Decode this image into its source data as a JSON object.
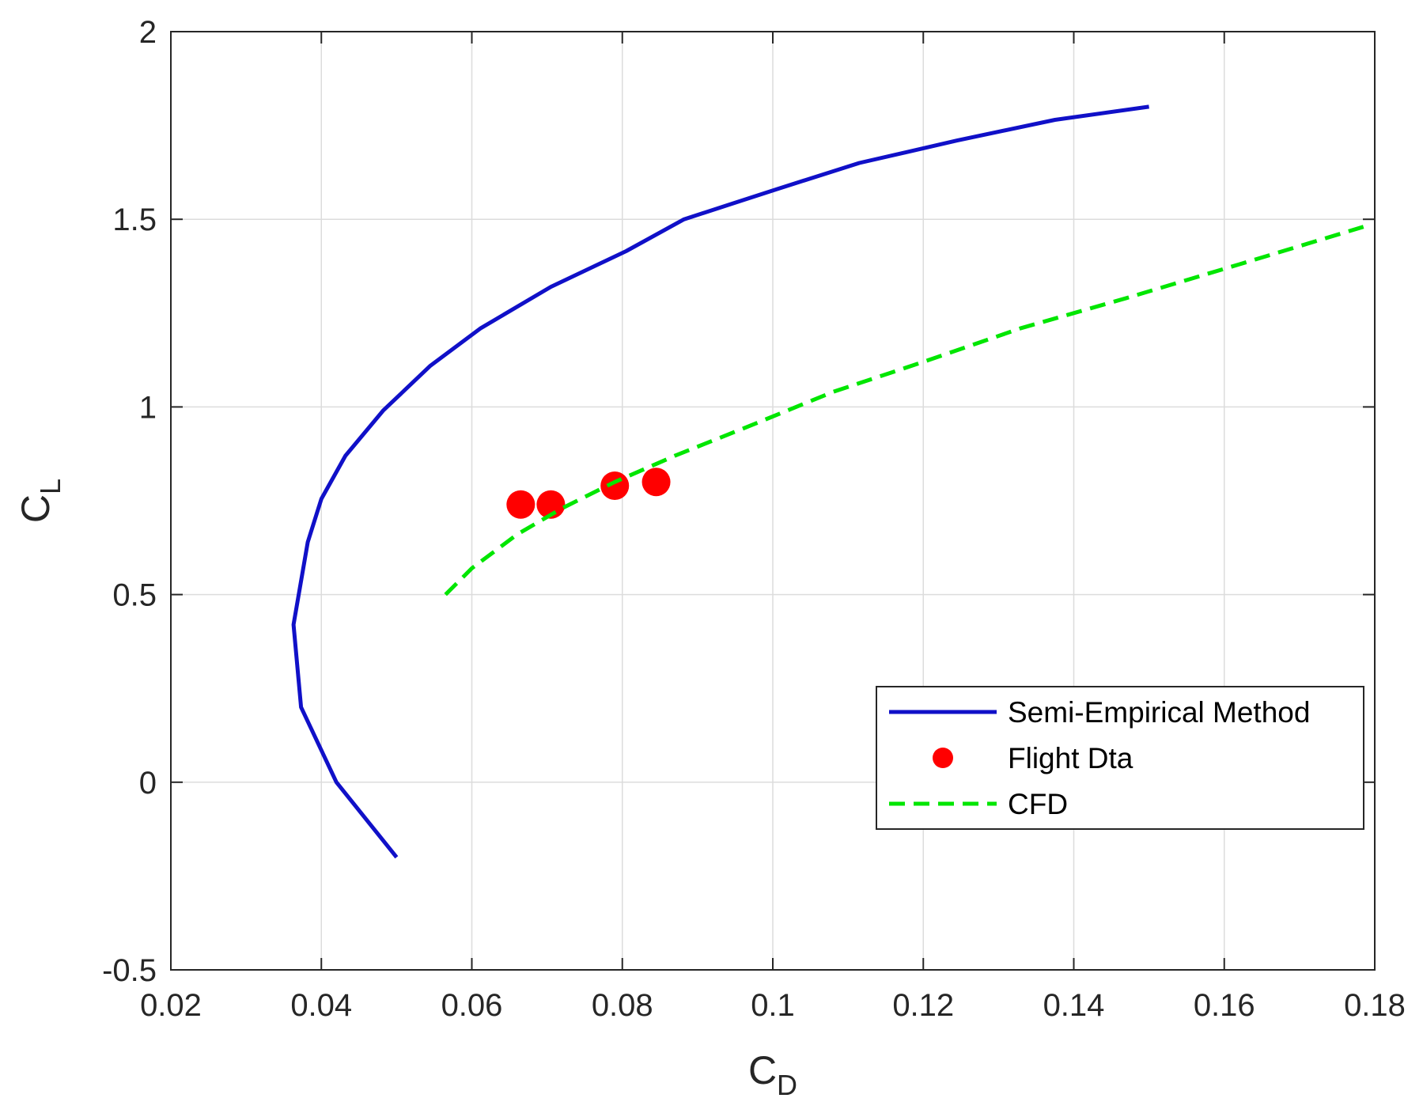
{
  "chart_data": {
    "type": "line",
    "xlabel": {
      "main": "C",
      "sub": "D"
    },
    "ylabel": {
      "main": "C",
      "sub": "L"
    },
    "xlim": [
      0.02,
      0.18
    ],
    "ylim": [
      -0.5,
      2
    ],
    "xticks": [
      0.02,
      0.04,
      0.06,
      0.08,
      0.1,
      0.12,
      0.14,
      0.16,
      0.18
    ],
    "xtick_labels": [
      "0.02",
      "0.04",
      "0.06",
      "0.08",
      "0.1",
      "0.12",
      "0.14",
      "0.16",
      "0.18"
    ],
    "yticks": [
      -0.5,
      0,
      0.5,
      1,
      1.5,
      2
    ],
    "ytick_labels": [
      "-0.5",
      "0",
      "0.5",
      "1",
      "1.5",
      "2"
    ],
    "grid": true,
    "legend_position": "lower-right",
    "series": [
      {
        "name": "Semi-Empirical Method",
        "style": "solid-line",
        "color": "#1010c8",
        "x": [
          0.05,
          0.042,
          0.0373,
          0.0363,
          0.0382,
          0.04,
          0.0432,
          0.0482,
          0.0545,
          0.0612,
          0.0705,
          0.0805,
          0.0882,
          0.1005,
          0.1115,
          0.1245,
          0.1375,
          0.15
        ],
        "y": [
          -0.2,
          0.0,
          0.2,
          0.42,
          0.64,
          0.755,
          0.87,
          0.99,
          1.11,
          1.21,
          1.32,
          1.415,
          1.5,
          1.58,
          1.65,
          1.71,
          1.765,
          1.8
        ]
      },
      {
        "name": "Flight Dta",
        "style": "markers",
        "color": "#ff0000",
        "x": [
          0.0665,
          0.0705,
          0.079,
          0.0845
        ],
        "y": [
          0.74,
          0.74,
          0.79,
          0.8
        ]
      },
      {
        "name": "CFD",
        "style": "dashed-line",
        "color": "#00e600",
        "x": [
          0.0565,
          0.06,
          0.066,
          0.072,
          0.079,
          0.087,
          0.097,
          0.108,
          0.12,
          0.133,
          0.147,
          0.162,
          0.1785
        ],
        "y": [
          0.5,
          0.57,
          0.66,
          0.73,
          0.8,
          0.87,
          0.95,
          1.04,
          1.12,
          1.21,
          1.29,
          1.38,
          1.48
        ]
      }
    ]
  }
}
